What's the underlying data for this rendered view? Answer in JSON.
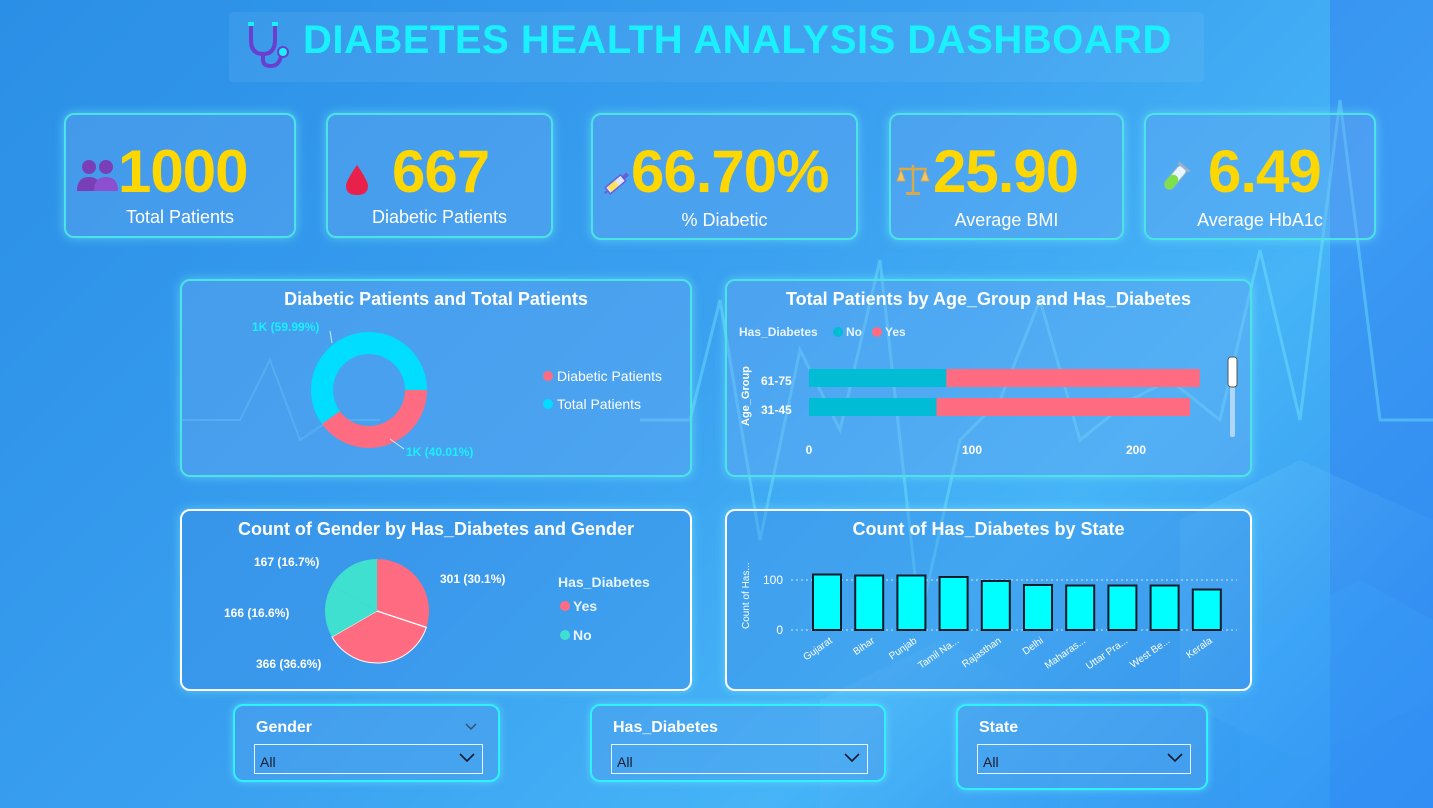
{
  "header": {
    "title": "DIABETES HEALTH ANALYSIS DASHBOARD"
  },
  "kpis": [
    {
      "value": "1000",
      "label": "Total Patients",
      "icon": "people-icon"
    },
    {
      "value": "667",
      "label": "Diabetic Patients",
      "icon": "blood-drop-icon"
    },
    {
      "value": "66.70%",
      "label": "% Diabetic",
      "icon": "syringe-icon"
    },
    {
      "value": "25.90",
      "label": "Average BMI",
      "icon": "scale-icon"
    },
    {
      "value": "6.49",
      "label": "Average HbA1c",
      "icon": "test-tube-icon"
    }
  ],
  "colors": {
    "accent": "#1af0ff",
    "kpi": "#ffd700",
    "yes": "#ff6b81",
    "no": "#00bcd4",
    "cyan": "#00ddff",
    "teal": "#40e0d0",
    "bar": "#00ffff"
  },
  "chart_data": [
    {
      "type": "pie",
      "title": "Diabetic Patients and Total Patients",
      "labels": [
        "Diabetic Patients",
        "Total Patients"
      ],
      "values": [
        667,
        1000
      ],
      "data_labels": [
        "1K (40.01%)",
        "1K (59.99%)"
      ],
      "legend": "right"
    },
    {
      "type": "bar",
      "orientation": "horizontal",
      "stacked": true,
      "title": "Total Patients by Age_Group and Has_Diabetes",
      "legend_title": "Has_Diabetes",
      "ylabel": "Age_Group",
      "categories": [
        "61-75",
        "31-45"
      ],
      "series": [
        {
          "name": "No",
          "values": [
            84,
            78
          ]
        },
        {
          "name": "Yes",
          "values": [
            155,
            155
          ]
        }
      ],
      "x_ticks": [
        "0",
        "100",
        "200"
      ],
      "xlim": [
        0,
        250
      ],
      "legend": "top-left"
    },
    {
      "type": "pie",
      "title": "Count of Gender by Has_Diabetes and Gender",
      "legend_title": "Has_Diabetes",
      "legend_items": [
        "Yes",
        "No"
      ],
      "values": [
        301,
        366,
        166,
        167
      ],
      "data_labels": [
        "301 (30.1%)",
        "366 (36.6%)",
        "166 (16.6%)",
        "167 (16.7%)"
      ],
      "legend": "right"
    },
    {
      "type": "bar",
      "title": "Count of Has_Diabetes by State",
      "ylabel": "Count of Has...",
      "categories": [
        "Gujarat",
        "Bihar",
        "Punjab",
        "Tamil Na...",
        "Rajasthan",
        "Delhi",
        "Maharas...",
        "Uttar Pra...",
        "West Be...",
        "Kerala"
      ],
      "values": [
        111,
        109,
        109,
        106,
        98,
        90,
        89,
        89,
        89,
        81
      ],
      "y_ticks": [
        "0",
        "100"
      ],
      "ylim": [
        0,
        120
      ],
      "grid": true
    }
  ],
  "slicers": [
    {
      "title": "Gender",
      "value": "All"
    },
    {
      "title": "Has_Diabetes",
      "value": "All"
    },
    {
      "title": "State",
      "value": "All"
    }
  ]
}
